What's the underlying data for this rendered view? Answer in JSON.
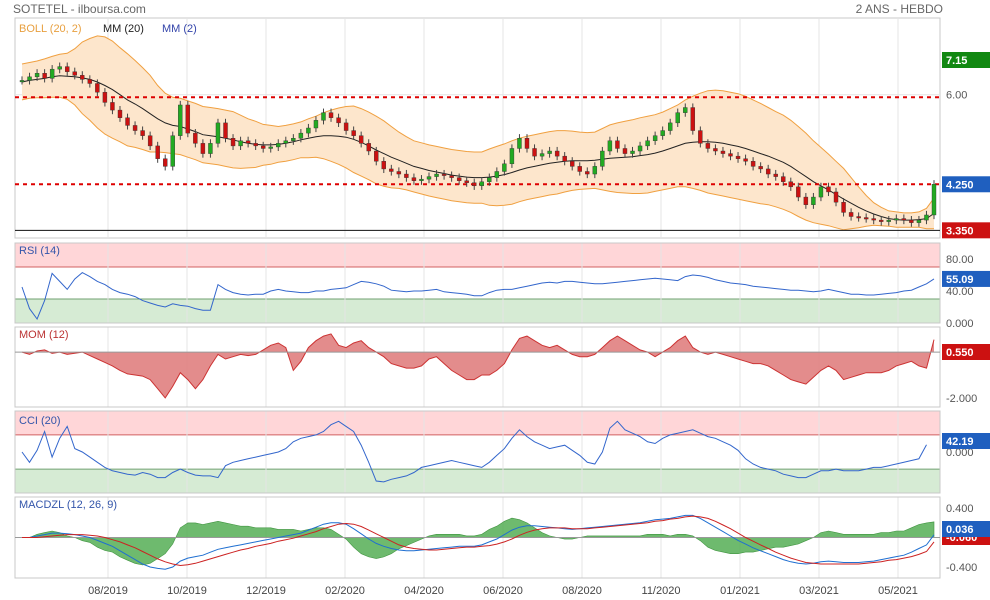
{
  "header": {
    "title": "SOTETEL - ilboursa.com",
    "period": "2 ANS - HEBDO"
  },
  "legend": {
    "boll": "BOLL (20, 2)",
    "mm20": "MM (20)",
    "mm2": "MM (2)"
  },
  "colors": {
    "up": "#22aa22",
    "down": "#cc1111",
    "boll_fill": "#fde6cc",
    "boll_line": "#f0a040",
    "mm20": "#222222",
    "ref_line": "#dd0000",
    "rsi": "#3366cc",
    "mom": "#cc3333",
    "macd": "#1f6fd1",
    "signal": "#cc2222",
    "hist": "#2e9e2e"
  },
  "chart_data": [
    {
      "type": "candlestick",
      "panel": "price",
      "x_labels": [
        "08/2019",
        "10/2019",
        "12/2019",
        "02/2020",
        "04/2020",
        "06/2020",
        "08/2020",
        "11/2020",
        "01/2021",
        "03/2021",
        "05/2021"
      ],
      "ylim": [
        3.2,
        7.5
      ],
      "y_ticks": [
        "6.00"
      ],
      "reference_lines": [
        5.95,
        4.25
      ],
      "support_line": 3.35,
      "badges": [
        {
          "label": "7.15",
          "value": 7.15,
          "color": "#118811"
        },
        {
          "label": "4.250",
          "value": 4.25,
          "color": "#1f5fbf"
        },
        {
          "label": "3.350",
          "value": 3.35,
          "color": "#cc1111"
        }
      ],
      "close": [
        6.28,
        6.35,
        6.42,
        6.32,
        6.5,
        6.55,
        6.45,
        6.38,
        6.3,
        6.22,
        6.05,
        5.85,
        5.7,
        5.55,
        5.4,
        5.3,
        5.2,
        5.0,
        4.75,
        4.6,
        5.2,
        5.8,
        5.25,
        5.05,
        4.85,
        5.05,
        5.45,
        5.15,
        5.0,
        5.1,
        5.05,
        5.0,
        4.95,
        4.98,
        5.05,
        5.1,
        5.15,
        5.25,
        5.35,
        5.5,
        5.65,
        5.55,
        5.45,
        5.3,
        5.2,
        5.05,
        4.9,
        4.7,
        4.55,
        4.5,
        4.45,
        4.38,
        4.32,
        4.35,
        4.4,
        4.45,
        4.42,
        4.38,
        4.32,
        4.28,
        4.22,
        4.3,
        4.38,
        4.5,
        4.65,
        4.95,
        5.15,
        4.95,
        4.8,
        4.85,
        4.9,
        4.8,
        4.7,
        4.6,
        4.5,
        4.45,
        4.6,
        4.9,
        5.1,
        4.95,
        4.85,
        4.9,
        5.0,
        5.1,
        5.2,
        5.3,
        5.45,
        5.65,
        5.75,
        5.3,
        5.05,
        4.95,
        4.9,
        4.85,
        4.8,
        4.75,
        4.7,
        4.6,
        4.55,
        4.45,
        4.4,
        4.3,
        4.2,
        4.0,
        3.85,
        4.0,
        4.2,
        4.1,
        3.9,
        3.7,
        3.62,
        3.6,
        3.58,
        3.55,
        3.52,
        3.55,
        3.58,
        3.55,
        3.5,
        3.55,
        3.65,
        4.25
      ],
      "mm20": [
        6.25,
        6.28,
        6.3,
        6.32,
        6.35,
        6.37,
        6.36,
        6.35,
        6.33,
        6.3,
        6.25,
        6.18,
        6.1,
        6.0,
        5.9,
        5.82,
        5.73,
        5.63,
        5.53,
        5.45,
        5.4,
        5.38,
        5.33,
        5.28,
        5.22,
        5.2,
        5.18,
        5.15,
        5.12,
        5.08,
        5.05,
        5.03,
        5.02,
        5.02,
        5.03,
        5.05,
        5.08,
        5.12,
        5.15,
        5.18,
        5.2,
        5.2,
        5.19,
        5.17,
        5.13,
        5.07,
        5.0,
        4.92,
        4.85,
        4.78,
        4.72,
        4.66,
        4.6,
        4.56,
        4.52,
        4.49,
        4.46,
        4.43,
        4.41,
        4.39,
        4.38,
        4.38,
        4.39,
        4.41,
        4.44,
        4.48,
        4.53,
        4.57,
        4.6,
        4.63,
        4.66,
        4.68,
        4.7,
        4.71,
        4.71,
        4.71,
        4.72,
        4.74,
        4.76,
        4.77,
        4.78,
        4.79,
        4.81,
        4.83,
        4.86,
        4.9,
        4.95,
        5.0,
        5.05,
        5.07,
        5.08,
        5.08,
        5.07,
        5.05,
        5.02,
        4.99,
        4.95,
        4.9,
        4.85,
        4.8,
        4.74,
        4.68,
        4.6,
        4.5,
        4.4,
        4.3,
        4.22,
        4.14,
        4.05,
        3.96,
        3.88,
        3.8,
        3.73,
        3.67,
        3.62,
        3.58,
        3.56,
        3.55,
        3.55,
        3.56,
        3.58,
        3.68
      ],
      "boll_width": [
        0.35,
        0.35,
        0.36,
        0.38,
        0.4,
        0.42,
        0.45,
        0.55,
        0.7,
        0.8,
        0.9,
        0.95,
        0.95,
        0.92,
        0.9,
        0.85,
        0.8,
        0.75,
        0.65,
        0.58,
        0.55,
        0.55,
        0.55,
        0.55,
        0.55,
        0.55,
        0.55,
        0.55,
        0.55,
        0.52,
        0.48,
        0.45,
        0.4,
        0.38,
        0.35,
        0.35,
        0.35,
        0.35,
        0.38,
        0.4,
        0.45,
        0.5,
        0.55,
        0.6,
        0.65,
        0.66,
        0.66,
        0.66,
        0.64,
        0.6,
        0.55,
        0.52,
        0.5,
        0.5,
        0.5,
        0.5,
        0.5,
        0.5,
        0.5,
        0.5,
        0.5,
        0.5,
        0.55,
        0.58,
        0.6,
        0.62,
        0.62,
        0.62,
        0.62,
        0.62,
        0.62,
        0.62,
        0.6,
        0.58,
        0.56,
        0.55,
        0.55,
        0.6,
        0.65,
        0.68,
        0.7,
        0.72,
        0.74,
        0.75,
        0.75,
        0.76,
        0.78,
        0.8,
        0.85,
        0.9,
        0.95,
        1.0,
        1.02,
        1.03,
        1.03,
        1.03,
        1.02,
        1.0,
        0.98,
        0.95,
        0.93,
        0.92,
        0.9,
        0.88,
        0.85,
        0.8,
        0.75,
        0.7,
        0.65,
        0.6,
        0.5,
        0.4,
        0.3,
        0.22,
        0.18,
        0.15,
        0.15,
        0.14,
        0.14,
        0.15,
        0.2,
        0.3
      ]
    },
    {
      "type": "line",
      "panel": "rsi",
      "title": "RSI (14)",
      "ylim": [
        0,
        100
      ],
      "y_ticks": [
        "80.00",
        "40.00",
        "0.000"
      ],
      "zones": [
        70,
        30
      ],
      "badge": {
        "label": "55.09",
        "value": 55.09,
        "color": "#1f5fbf"
      },
      "values": [
        45,
        18,
        5,
        28,
        62,
        52,
        42,
        55,
        63,
        58,
        52,
        48,
        42,
        38,
        36,
        33,
        28,
        25,
        22,
        20,
        24,
        22,
        21,
        18,
        16,
        16,
        48,
        42,
        38,
        36,
        35,
        36,
        36,
        40,
        42,
        40,
        39,
        38,
        38,
        40,
        40,
        42,
        43,
        44,
        48,
        52,
        51,
        49,
        46,
        41,
        40,
        39,
        40,
        40,
        41,
        42,
        39,
        38,
        37,
        36,
        34,
        34,
        38,
        41,
        42,
        42,
        44,
        46,
        48,
        50,
        51,
        50,
        52,
        52,
        51,
        50,
        49,
        49,
        50,
        51,
        52,
        53,
        54,
        55,
        56,
        55,
        54,
        53,
        58,
        60,
        59,
        57,
        54,
        52,
        50,
        49,
        48,
        46,
        45,
        44,
        43,
        42,
        41,
        41,
        40,
        39,
        40,
        42,
        40,
        38,
        36,
        36,
        35,
        35,
        36,
        37,
        38,
        40,
        41,
        45,
        49,
        55.09
      ]
    },
    {
      "type": "area",
      "panel": "mom",
      "title": "MOM (12)",
      "ylim": [
        -2.4,
        1.1
      ],
      "y_ticks": [
        "0.000",
        "-2.000"
      ],
      "badge": {
        "label": "0.550",
        "value": 0.55,
        "color": "#cc1111"
      },
      "values": [
        0.0,
        -0.1,
        0.05,
        0.1,
        -0.05,
        0.0,
        -0.1,
        -0.05,
        0.0,
        -0.15,
        -0.3,
        -0.45,
        -0.6,
        -0.8,
        -0.95,
        -1.0,
        -1.05,
        -1.2,
        -1.6,
        -2.0,
        -1.5,
        -0.9,
        -1.2,
        -1.6,
        -1.2,
        -0.6,
        -0.1,
        -0.3,
        -0.2,
        -0.1,
        -0.15,
        -0.1,
        0.1,
        0.3,
        0.4,
        0.2,
        -0.8,
        -0.4,
        0.2,
        0.5,
        0.7,
        0.8,
        0.3,
        0.2,
        0.4,
        0.5,
        0.2,
        0.0,
        -0.2,
        -0.5,
        -0.6,
        -0.7,
        -0.7,
        -0.6,
        -0.3,
        -0.2,
        -0.5,
        -0.8,
        -1.0,
        -1.2,
        -1.2,
        -1.0,
        -1.0,
        -0.8,
        -0.5,
        0.1,
        0.6,
        0.7,
        0.5,
        0.3,
        0.2,
        0.3,
        0.1,
        -0.1,
        -0.2,
        -0.2,
        -0.1,
        0.2,
        0.5,
        0.7,
        0.5,
        0.3,
        0.1,
        0.0,
        -0.2,
        0.0,
        0.2,
        0.5,
        0.7,
        0.2,
        0.0,
        -0.1,
        0.0,
        -0.1,
        -0.2,
        -0.3,
        -0.4,
        -0.5,
        -0.5,
        -0.6,
        -0.8,
        -1.0,
        -1.2,
        -1.3,
        -1.4,
        -1.1,
        -0.8,
        -0.6,
        -0.8,
        -1.2,
        -1.1,
        -1.0,
        -0.9,
        -0.9,
        -0.9,
        -0.8,
        -0.6,
        -0.5,
        -0.4,
        -0.6,
        -0.7,
        0.55
      ]
    },
    {
      "type": "line",
      "panel": "cci",
      "title": "CCI (20)",
      "ylim": [
        -240,
        240
      ],
      "y_ticks": [
        "0.000"
      ],
      "zones": [
        100,
        -100
      ],
      "badge": {
        "label": "42.19",
        "value": 42.19,
        "color": "#1f5fbf"
      },
      "values": [
        0,
        -60,
        10,
        120,
        -30,
        80,
        150,
        20,
        0,
        -30,
        -60,
        -90,
        -110,
        -120,
        -130,
        -135,
        -120,
        -130,
        -150,
        -150,
        -120,
        -100,
        -120,
        -135,
        -140,
        -140,
        -150,
        -80,
        -60,
        -50,
        -40,
        -30,
        -20,
        -10,
        0,
        20,
        60,
        80,
        90,
        100,
        120,
        160,
        180,
        150,
        120,
        40,
        -60,
        -170,
        -175,
        -160,
        -150,
        -140,
        -120,
        -90,
        -80,
        -70,
        -60,
        -50,
        -60,
        -70,
        -80,
        -90,
        -60,
        -20,
        20,
        80,
        130,
        90,
        60,
        40,
        20,
        30,
        40,
        10,
        -20,
        -60,
        -70,
        0,
        140,
        180,
        130,
        110,
        90,
        60,
        50,
        80,
        100,
        110,
        120,
        130,
        110,
        90,
        80,
        60,
        40,
        10,
        -40,
        -70,
        -90,
        -100,
        -110,
        -130,
        -140,
        -150,
        -150,
        -130,
        -110,
        -110,
        -100,
        -110,
        -110,
        -110,
        -100,
        -90,
        -90,
        -80,
        -70,
        -60,
        -50,
        -40,
        42.19
      ]
    },
    {
      "type": "line",
      "panel": "macd",
      "title": "MACDZL (12, 26, 9)",
      "ylim": [
        -0.55,
        0.55
      ],
      "y_ticks": [
        "0.400",
        "-0.400"
      ],
      "badges": [
        {
          "label": "0.036",
          "value": 0.036,
          "color": "#1f5fbf"
        },
        {
          "label": "-0.060",
          "value": -0.06,
          "color": "#cc1111"
        }
      ],
      "macd": [
        0.0,
        0.0,
        0.02,
        0.04,
        0.06,
        0.06,
        0.05,
        0.04,
        0.02,
        0.0,
        -0.04,
        -0.08,
        -0.12,
        -0.18,
        -0.24,
        -0.3,
        -0.36,
        -0.4,
        -0.42,
        -0.43,
        -0.4,
        -0.32,
        -0.28,
        -0.26,
        -0.24,
        -0.2,
        -0.16,
        -0.14,
        -0.12,
        -0.1,
        -0.08,
        -0.06,
        -0.04,
        -0.02,
        0.0,
        0.02,
        0.04,
        0.06,
        0.1,
        0.14,
        0.18,
        0.2,
        0.2,
        0.18,
        0.12,
        0.05,
        -0.02,
        -0.08,
        -0.12,
        -0.15,
        -0.17,
        -0.18,
        -0.18,
        -0.17,
        -0.16,
        -0.15,
        -0.14,
        -0.13,
        -0.12,
        -0.12,
        -0.12,
        -0.1,
        -0.06,
        -0.02,
        0.04,
        0.1,
        0.14,
        0.16,
        0.16,
        0.15,
        0.14,
        0.13,
        0.12,
        0.11,
        0.12,
        0.13,
        0.14,
        0.15,
        0.16,
        0.17,
        0.18,
        0.19,
        0.2,
        0.22,
        0.24,
        0.25,
        0.26,
        0.28,
        0.3,
        0.3,
        0.26,
        0.2,
        0.14,
        0.08,
        0.02,
        -0.04,
        -0.09,
        -0.14,
        -0.18,
        -0.22,
        -0.26,
        -0.3,
        -0.33,
        -0.35,
        -0.36,
        -0.35,
        -0.33,
        -0.32,
        -0.33,
        -0.34,
        -0.34,
        -0.34,
        -0.33,
        -0.32,
        -0.3,
        -0.28,
        -0.26,
        -0.24,
        -0.2,
        -0.15,
        -0.1,
        0.036
      ],
      "signal": [
        0.0,
        0.0,
        0.0,
        0.01,
        0.02,
        0.03,
        0.04,
        0.04,
        0.04,
        0.03,
        0.02,
        0.0,
        -0.03,
        -0.06,
        -0.1,
        -0.14,
        -0.19,
        -0.24,
        -0.29,
        -0.33,
        -0.36,
        -0.38,
        -0.37,
        -0.35,
        -0.32,
        -0.29,
        -0.26,
        -0.23,
        -0.2,
        -0.17,
        -0.15,
        -0.12,
        -0.1,
        -0.08,
        -0.05,
        -0.03,
        -0.01,
        0.02,
        0.05,
        0.08,
        0.12,
        0.15,
        0.18,
        0.19,
        0.18,
        0.15,
        0.1,
        0.05,
        0.0,
        -0.05,
        -0.1,
        -0.13,
        -0.15,
        -0.16,
        -0.17,
        -0.17,
        -0.16,
        -0.15,
        -0.14,
        -0.13,
        -0.13,
        -0.12,
        -0.11,
        -0.09,
        -0.06,
        -0.02,
        0.03,
        0.07,
        0.1,
        0.12,
        0.13,
        0.13,
        0.13,
        0.12,
        0.12,
        0.12,
        0.13,
        0.14,
        0.15,
        0.16,
        0.17,
        0.18,
        0.19,
        0.2,
        0.22,
        0.23,
        0.25,
        0.26,
        0.28,
        0.29,
        0.28,
        0.26,
        0.22,
        0.17,
        0.12,
        0.06,
        0.0,
        -0.05,
        -0.1,
        -0.15,
        -0.2,
        -0.24,
        -0.28,
        -0.31,
        -0.34,
        -0.35,
        -0.36,
        -0.36,
        -0.36,
        -0.36,
        -0.36,
        -0.36,
        -0.35,
        -0.34,
        -0.33,
        -0.31,
        -0.3,
        -0.28,
        -0.26,
        -0.23,
        -0.19,
        -0.06
      ]
    }
  ]
}
